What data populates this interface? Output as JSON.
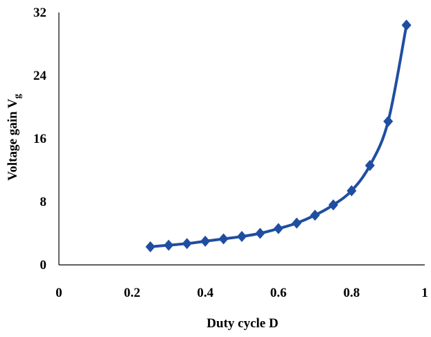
{
  "chart_data": {
    "type": "line",
    "xlabel": "Duty cycle D",
    "ylabel": "Voltage gain V",
    "ylabel_subscript": "g",
    "xlim": [
      0,
      1
    ],
    "ylim": [
      0,
      32
    ],
    "x_ticks": [
      0,
      0.2,
      0.4,
      0.6,
      0.8,
      1
    ],
    "x_tick_labels": [
      "0",
      "0.2",
      "0.4",
      "0.6",
      "0.8",
      "1"
    ],
    "y_ticks": [
      0,
      8,
      16,
      24,
      32
    ],
    "y_tick_labels": [
      "0",
      "8",
      "16",
      "24",
      "32"
    ],
    "grid": false,
    "legend": "none",
    "series_color": "#1f4ea1",
    "marker": "diamond",
    "series": [
      {
        "x": [
          0.25,
          0.3,
          0.35,
          0.4,
          0.45,
          0.5,
          0.55,
          0.6,
          0.65,
          0.7,
          0.75,
          0.8,
          0.85,
          0.9,
          0.95
        ],
        "values": [
          2.3,
          2.5,
          2.7,
          3.0,
          3.3,
          3.6,
          4.0,
          4.6,
          5.3,
          6.3,
          7.6,
          9.4,
          12.6,
          18.2,
          30.4
        ]
      }
    ]
  }
}
